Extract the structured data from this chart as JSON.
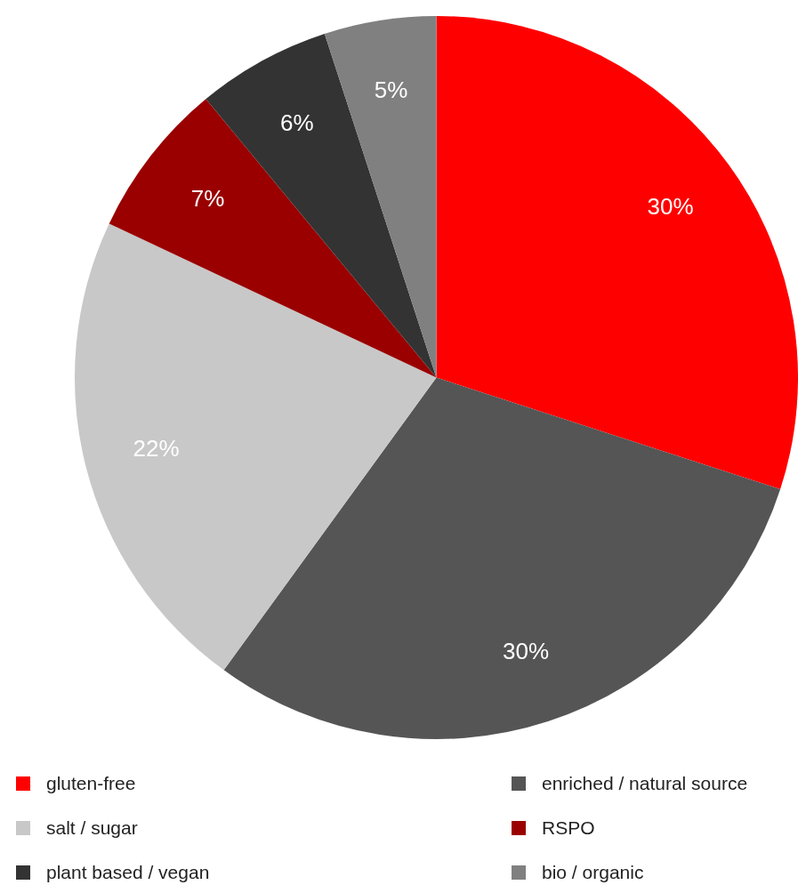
{
  "chart_data": {
    "type": "pie",
    "categories": [
      "gluten-free",
      "enriched / natural source",
      "salt / sugar",
      "RSPO",
      "plant based / vegan",
      "bio / organic"
    ],
    "values": [
      30,
      30,
      22,
      7,
      6,
      5
    ],
    "colors": [
      "#ff0000",
      "#555555",
      "#c8c8c8",
      "#9a0000",
      "#333333",
      "#808080"
    ],
    "value_labels": [
      "30%",
      "30%",
      "22%",
      "7%",
      "6%",
      "5%"
    ],
    "legend": "bottom"
  }
}
